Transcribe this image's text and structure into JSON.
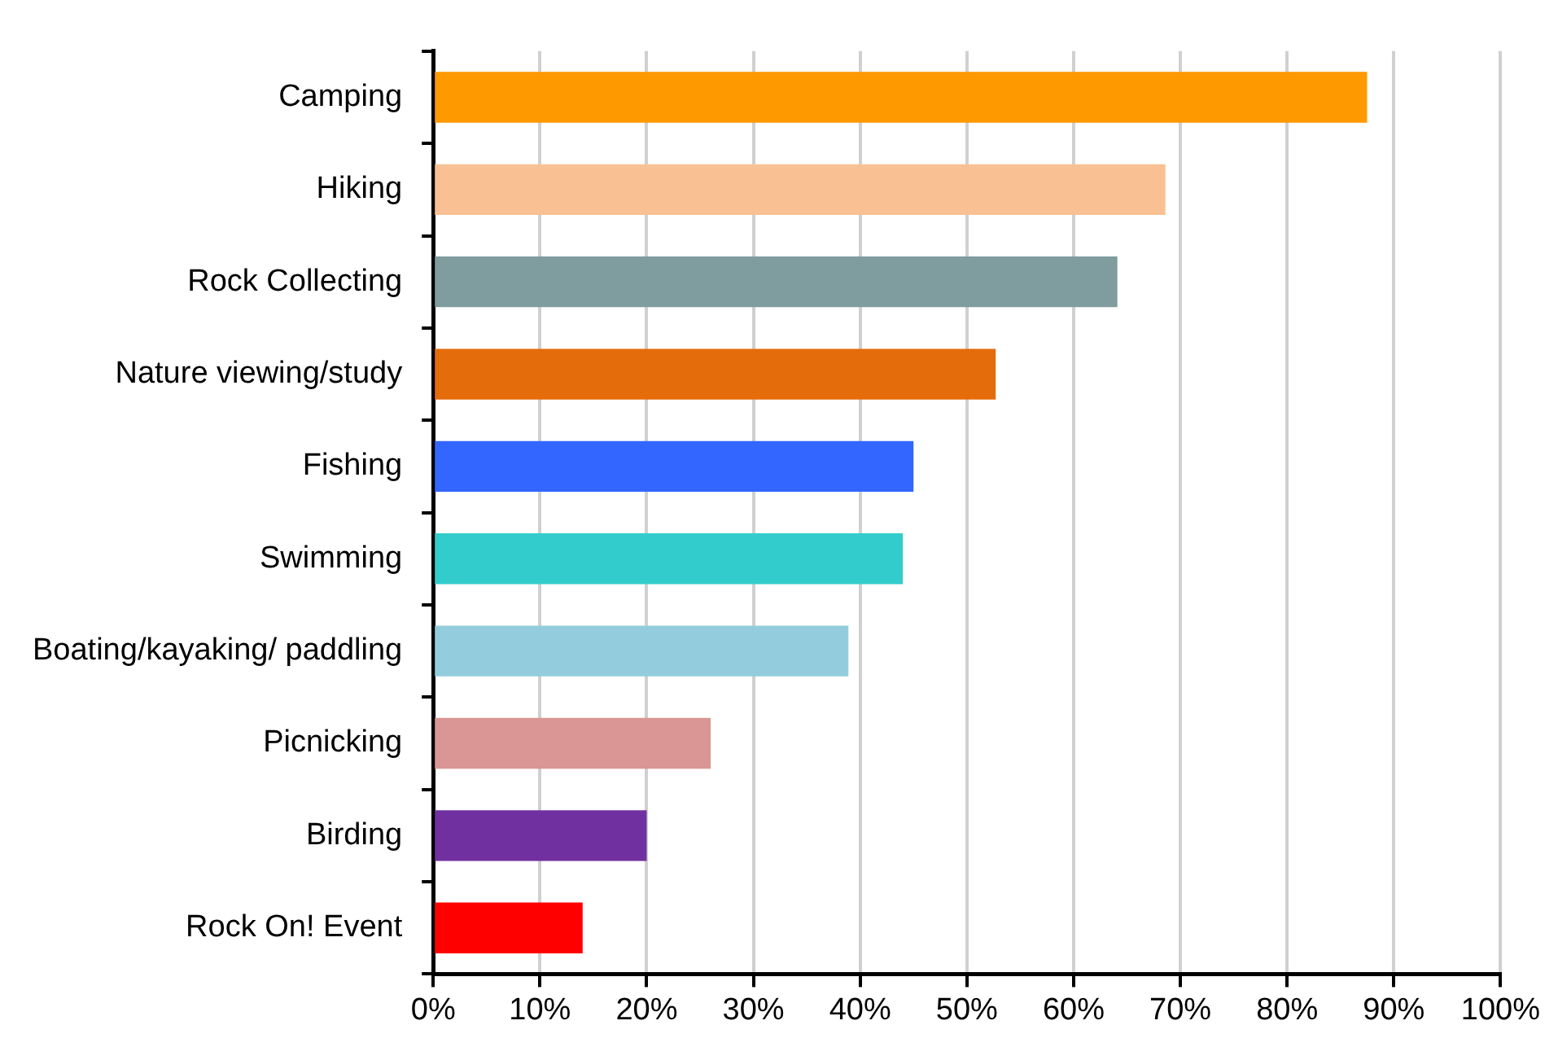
{
  "chart_data": {
    "type": "bar",
    "orientation": "horizontal",
    "categories": [
      "Camping",
      "Hiking",
      "Rock Collecting",
      "Nature viewing/study",
      "Fishing",
      "Swimming",
      "Boating/kayaking/ paddling",
      "Picnicking",
      "Birding",
      "Rock On! Event"
    ],
    "values": [
      87.5,
      68.6,
      64.1,
      52.7,
      45,
      44,
      38.9,
      26,
      20,
      14
    ],
    "colors": [
      "#ff9900",
      "#f9c193",
      "#7f9c9f",
      "#e46c0a",
      "#3366ff",
      "#33cccc",
      "#93cddd",
      "#d99694",
      "#7030a0",
      "#ff0000"
    ],
    "xlim": [
      0,
      100
    ],
    "xticks": [
      {
        "value": 0,
        "label": "0%"
      },
      {
        "value": 10,
        "label": "10%"
      },
      {
        "value": 20,
        "label": "20%"
      },
      {
        "value": 30,
        "label": "30%"
      },
      {
        "value": 40,
        "label": "40%"
      },
      {
        "value": 50,
        "label": "50%"
      },
      {
        "value": 60,
        "label": "60%"
      },
      {
        "value": 70,
        "label": "70%"
      },
      {
        "value": 80,
        "label": "80%"
      },
      {
        "value": 90,
        "label": "90%"
      },
      {
        "value": 100,
        "label": "100%"
      }
    ],
    "grid": "x",
    "legend": false
  }
}
